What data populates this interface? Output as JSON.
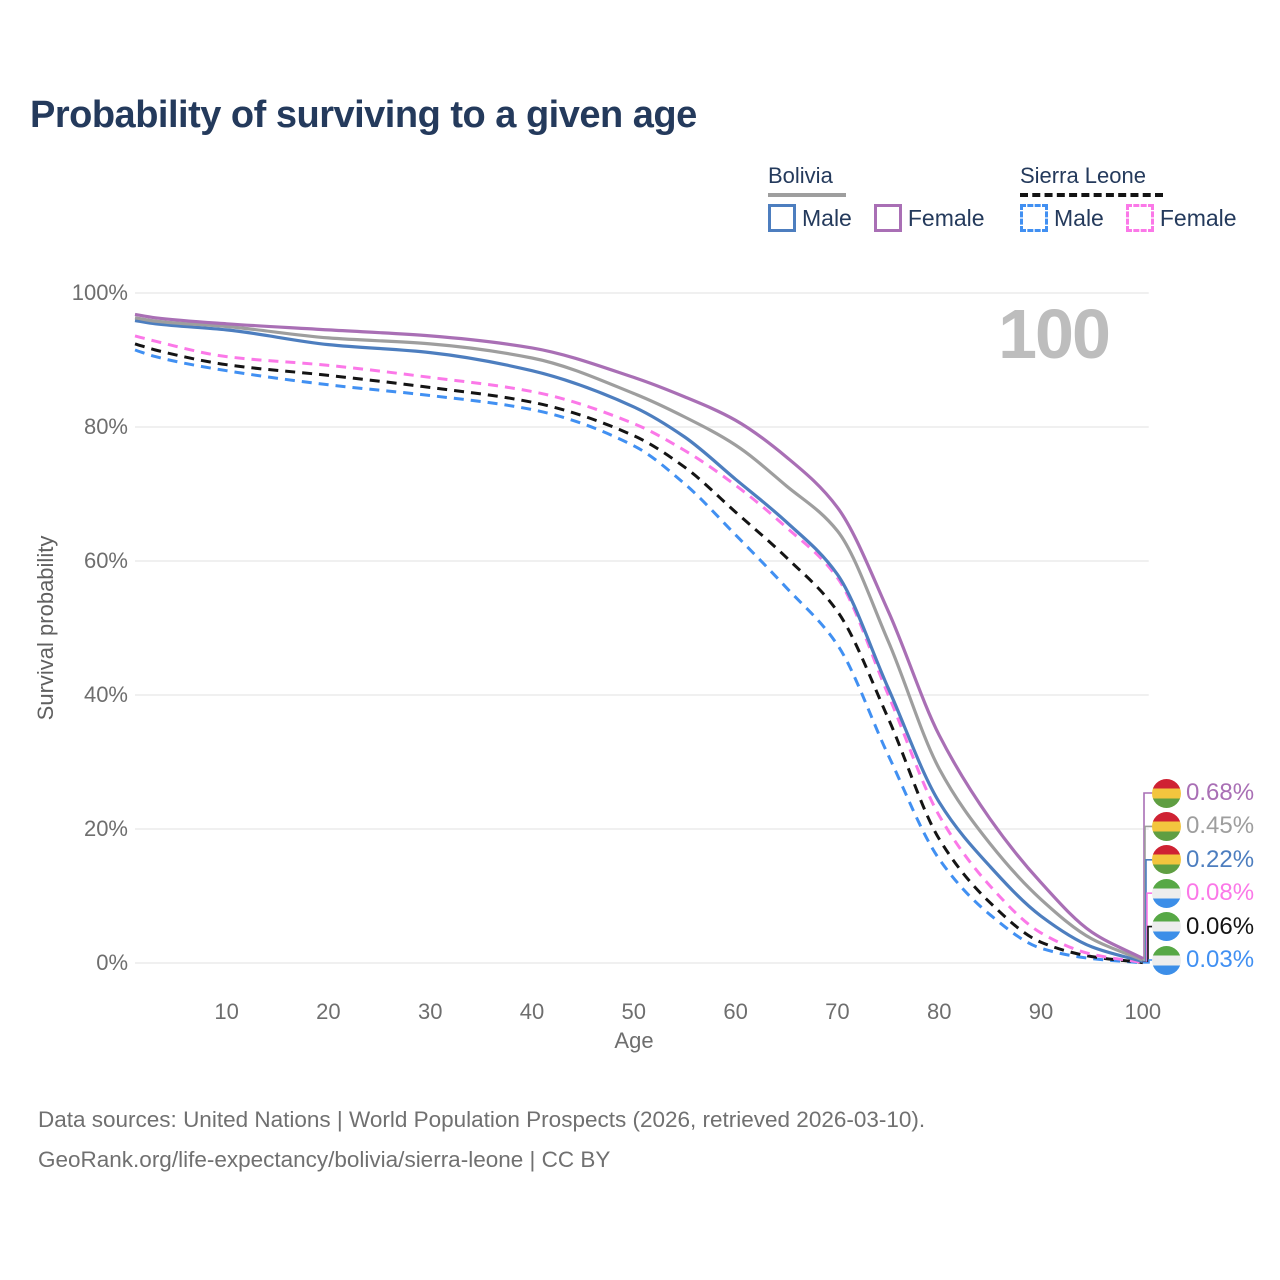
{
  "title": "Probability of surviving to a given age",
  "watermark_age": "100",
  "legend": {
    "groups": [
      {
        "country": "Bolivia",
        "underline": {
          "color": "#9e9e9e",
          "dashed": false
        },
        "items": [
          {
            "label": "Male",
            "color": "#4d7ebf",
            "dashed": false
          },
          {
            "label": "Female",
            "color": "#a96fb5",
            "dashed": false
          }
        ]
      },
      {
        "country": "Sierra Leone",
        "underline": {
          "color": "#141414",
          "dashed": true
        },
        "items": [
          {
            "label": "Male",
            "color": "#4190f2",
            "dashed": true
          },
          {
            "label": "Female",
            "color": "#fb78e8",
            "dashed": true
          }
        ]
      }
    ]
  },
  "chart_data": {
    "type": "line",
    "title": "Probability of surviving to a given age",
    "xlabel": "Age",
    "ylabel": "Survival probability",
    "xlim": [
      1,
      100
    ],
    "ylim": [
      0,
      100
    ],
    "grid": "horizontal",
    "legend_position": "top-right",
    "x_ticks": {
      "values": [
        10,
        20,
        30,
        40,
        50,
        60,
        70,
        80,
        90,
        100
      ],
      "labels": [
        "10",
        "20",
        "30",
        "40",
        "50",
        "60",
        "70",
        "80",
        "90",
        "100"
      ]
    },
    "y_ticks": {
      "values": [
        0,
        20,
        40,
        60,
        80,
        100
      ],
      "labels": [
        "0%",
        "20%",
        "40%",
        "60%",
        "80%",
        "100%"
      ]
    },
    "ages": [
      1,
      3,
      10,
      20,
      30,
      40,
      50,
      55,
      60,
      65,
      70,
      75,
      80,
      85,
      90,
      95,
      100
    ],
    "series": [
      {
        "name": "Bolivia Female",
        "country": "Bolivia",
        "sex": "female",
        "color": "#a96fb5",
        "dashed": false,
        "flag": "bolivia",
        "end_label": "0.68%",
        "end_value": 0.68,
        "values": [
          96.8,
          96.3,
          95.4,
          94.5,
          93.6,
          91.8,
          87.4,
          84.5,
          81.0,
          75.5,
          68.0,
          52.5,
          34.0,
          21.5,
          12.0,
          4.6,
          0.68
        ]
      },
      {
        "name": "Bolivia Both sexes",
        "country": "Bolivia",
        "sex": "all",
        "color": "#9e9e9e",
        "dashed": false,
        "flag": "bolivia",
        "end_label": "0.45%",
        "end_value": 0.45,
        "values": [
          96.3,
          95.8,
          95.0,
          93.3,
          92.4,
          90.3,
          85.0,
          81.5,
          77.3,
          71.2,
          64.5,
          48.0,
          29.0,
          17.8,
          9.5,
          3.6,
          0.45
        ]
      },
      {
        "name": "Bolivia Male",
        "country": "Bolivia",
        "sex": "male",
        "color": "#4d7ebf",
        "dashed": false,
        "flag": "bolivia",
        "end_label": "0.22%",
        "end_value": 0.22,
        "values": [
          95.9,
          95.4,
          94.5,
          92.3,
          91.1,
          88.4,
          83.0,
          78.5,
          72.2,
          65.8,
          58.0,
          41.0,
          24.0,
          14.4,
          7.0,
          2.4,
          0.22
        ]
      },
      {
        "name": "Sierra Leone Female",
        "country": "Sierra Leone",
        "sex": "female",
        "color": "#fb78e8",
        "dashed": true,
        "flag": "sierra_leone",
        "end_label": "0.08%",
        "end_value": 0.08,
        "values": [
          93.6,
          92.8,
          90.5,
          89.2,
          87.4,
          85.3,
          80.5,
          76.5,
          71.3,
          65.0,
          57.5,
          40.0,
          22.0,
          11.5,
          4.5,
          1.3,
          0.08
        ]
      },
      {
        "name": "Sierra Leone Both sexes",
        "country": "Sierra Leone",
        "sex": "all",
        "color": "#141414",
        "dashed": true,
        "flag": "sierra_leone",
        "end_label": "0.06%",
        "end_value": 0.06,
        "values": [
          92.4,
          91.5,
          89.3,
          87.7,
          85.9,
          83.7,
          78.7,
          74.0,
          67.3,
          60.5,
          52.5,
          36.5,
          18.5,
          9.0,
          3.1,
          0.95,
          0.06
        ]
      },
      {
        "name": "Sierra Leone Male",
        "country": "Sierra Leone",
        "sex": "male",
        "color": "#4190f2",
        "dashed": true,
        "flag": "sierra_leone",
        "end_label": "0.03%",
        "end_value": 0.03,
        "values": [
          91.5,
          90.5,
          88.4,
          86.3,
          84.7,
          82.6,
          77.2,
          71.5,
          63.9,
          56.0,
          47.5,
          31.0,
          15.5,
          7.2,
          2.2,
          0.65,
          0.03
        ]
      }
    ],
    "flags": {
      "bolivia": [
        "#cf2233",
        "#f3c53e",
        "#5f9e42"
      ],
      "sierra_leone": [
        "#57a846",
        "#ededed",
        "#3c8ee8"
      ]
    }
  },
  "footer": {
    "line1": "Data sources: United Nations | World Population Prospects (2026, retrieved 2026-03-10).",
    "line2": "GeoRank.org/life-expectancy/bolivia/sierra-leone | CC BY"
  }
}
